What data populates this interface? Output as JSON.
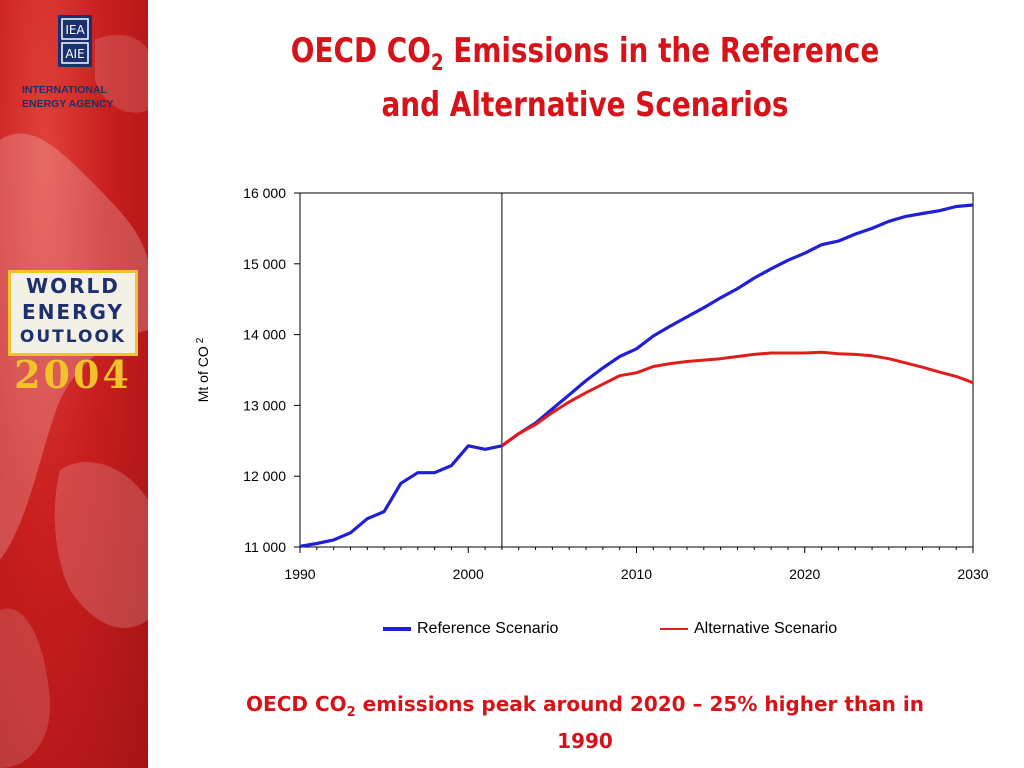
{
  "sidebar": {
    "agency_name_line1": "INTERNATIONAL",
    "agency_name_line2": "ENERGY AGENCY",
    "weo_line1": "WORLD",
    "weo_line2": "ENERGY",
    "weo_line3": "OUTLOOK",
    "weo_year": "2004"
  },
  "title": {
    "part1": "OECD CO",
    "sub": "2",
    "part2": " Emissions in the Reference",
    "line2": "and Alternative Scenarios"
  },
  "caption": {
    "part1": "OECD CO",
    "sub": "2",
    "part2": " emissions peak around 2020 – 25% higher than in",
    "line2": "1990"
  },
  "colors": {
    "title_red": "#d7131a",
    "reference_blue": "#1f1fd6",
    "alternative_red": "#e21b1b"
  },
  "chart_data": {
    "type": "line",
    "ylabel": "Mt of CO",
    "ylabel_sub": "2",
    "xlim": [
      1990,
      2030
    ],
    "ylim": [
      11000,
      16000
    ],
    "x_ticks": [
      1990,
      2000,
      2010,
      2020,
      2030
    ],
    "x_tick_labels": [
      "1990",
      "2000",
      "2010",
      "2020",
      "2030"
    ],
    "y_ticks": [
      11000,
      12000,
      13000,
      14000,
      15000,
      16000
    ],
    "y_tick_labels": [
      "11 000",
      "12 000",
      "13 000",
      "14 000",
      "15 000",
      "16 000"
    ],
    "vertical_line_x": 2002,
    "grid": false,
    "legend_position": "bottom",
    "series": [
      {
        "name": "Reference Scenario",
        "color": "#1f1fd6",
        "x": [
          1990,
          1991,
          1992,
          1993,
          1994,
          1995,
          1996,
          1997,
          1998,
          1999,
          2000,
          2001,
          2002,
          2003,
          2004,
          2005,
          2006,
          2007,
          2008,
          2009,
          2010,
          2011,
          2012,
          2013,
          2014,
          2015,
          2016,
          2017,
          2018,
          2019,
          2020,
          2021,
          2022,
          2023,
          2024,
          2025,
          2026,
          2027,
          2028,
          2029,
          2030
        ],
        "y": [
          11010,
          11050,
          11100,
          11200,
          11400,
          11500,
          11900,
          12050,
          12050,
          12150,
          12430,
          12380,
          12430,
          12600,
          12750,
          12950,
          13150,
          13350,
          13530,
          13690,
          13800,
          13980,
          14120,
          14250,
          14380,
          14520,
          14650,
          14800,
          14930,
          15050,
          15150,
          15270,
          15320,
          15420,
          15500,
          15600,
          15670,
          15710,
          15750,
          15810,
          15830
        ]
      },
      {
        "name": "Alternative Scenario",
        "color": "#e21b1b",
        "x": [
          2002,
          2003,
          2004,
          2005,
          2006,
          2007,
          2008,
          2009,
          2010,
          2011,
          2012,
          2013,
          2014,
          2015,
          2016,
          2017,
          2018,
          2019,
          2020,
          2021,
          2022,
          2023,
          2024,
          2025,
          2026,
          2027,
          2028,
          2029,
          2030
        ],
        "y": [
          12430,
          12600,
          12730,
          12900,
          13050,
          13180,
          13300,
          13420,
          13460,
          13550,
          13590,
          13620,
          13640,
          13660,
          13690,
          13720,
          13740,
          13740,
          13740,
          13750,
          13730,
          13720,
          13700,
          13660,
          13600,
          13540,
          13470,
          13410,
          13320
        ]
      }
    ]
  }
}
